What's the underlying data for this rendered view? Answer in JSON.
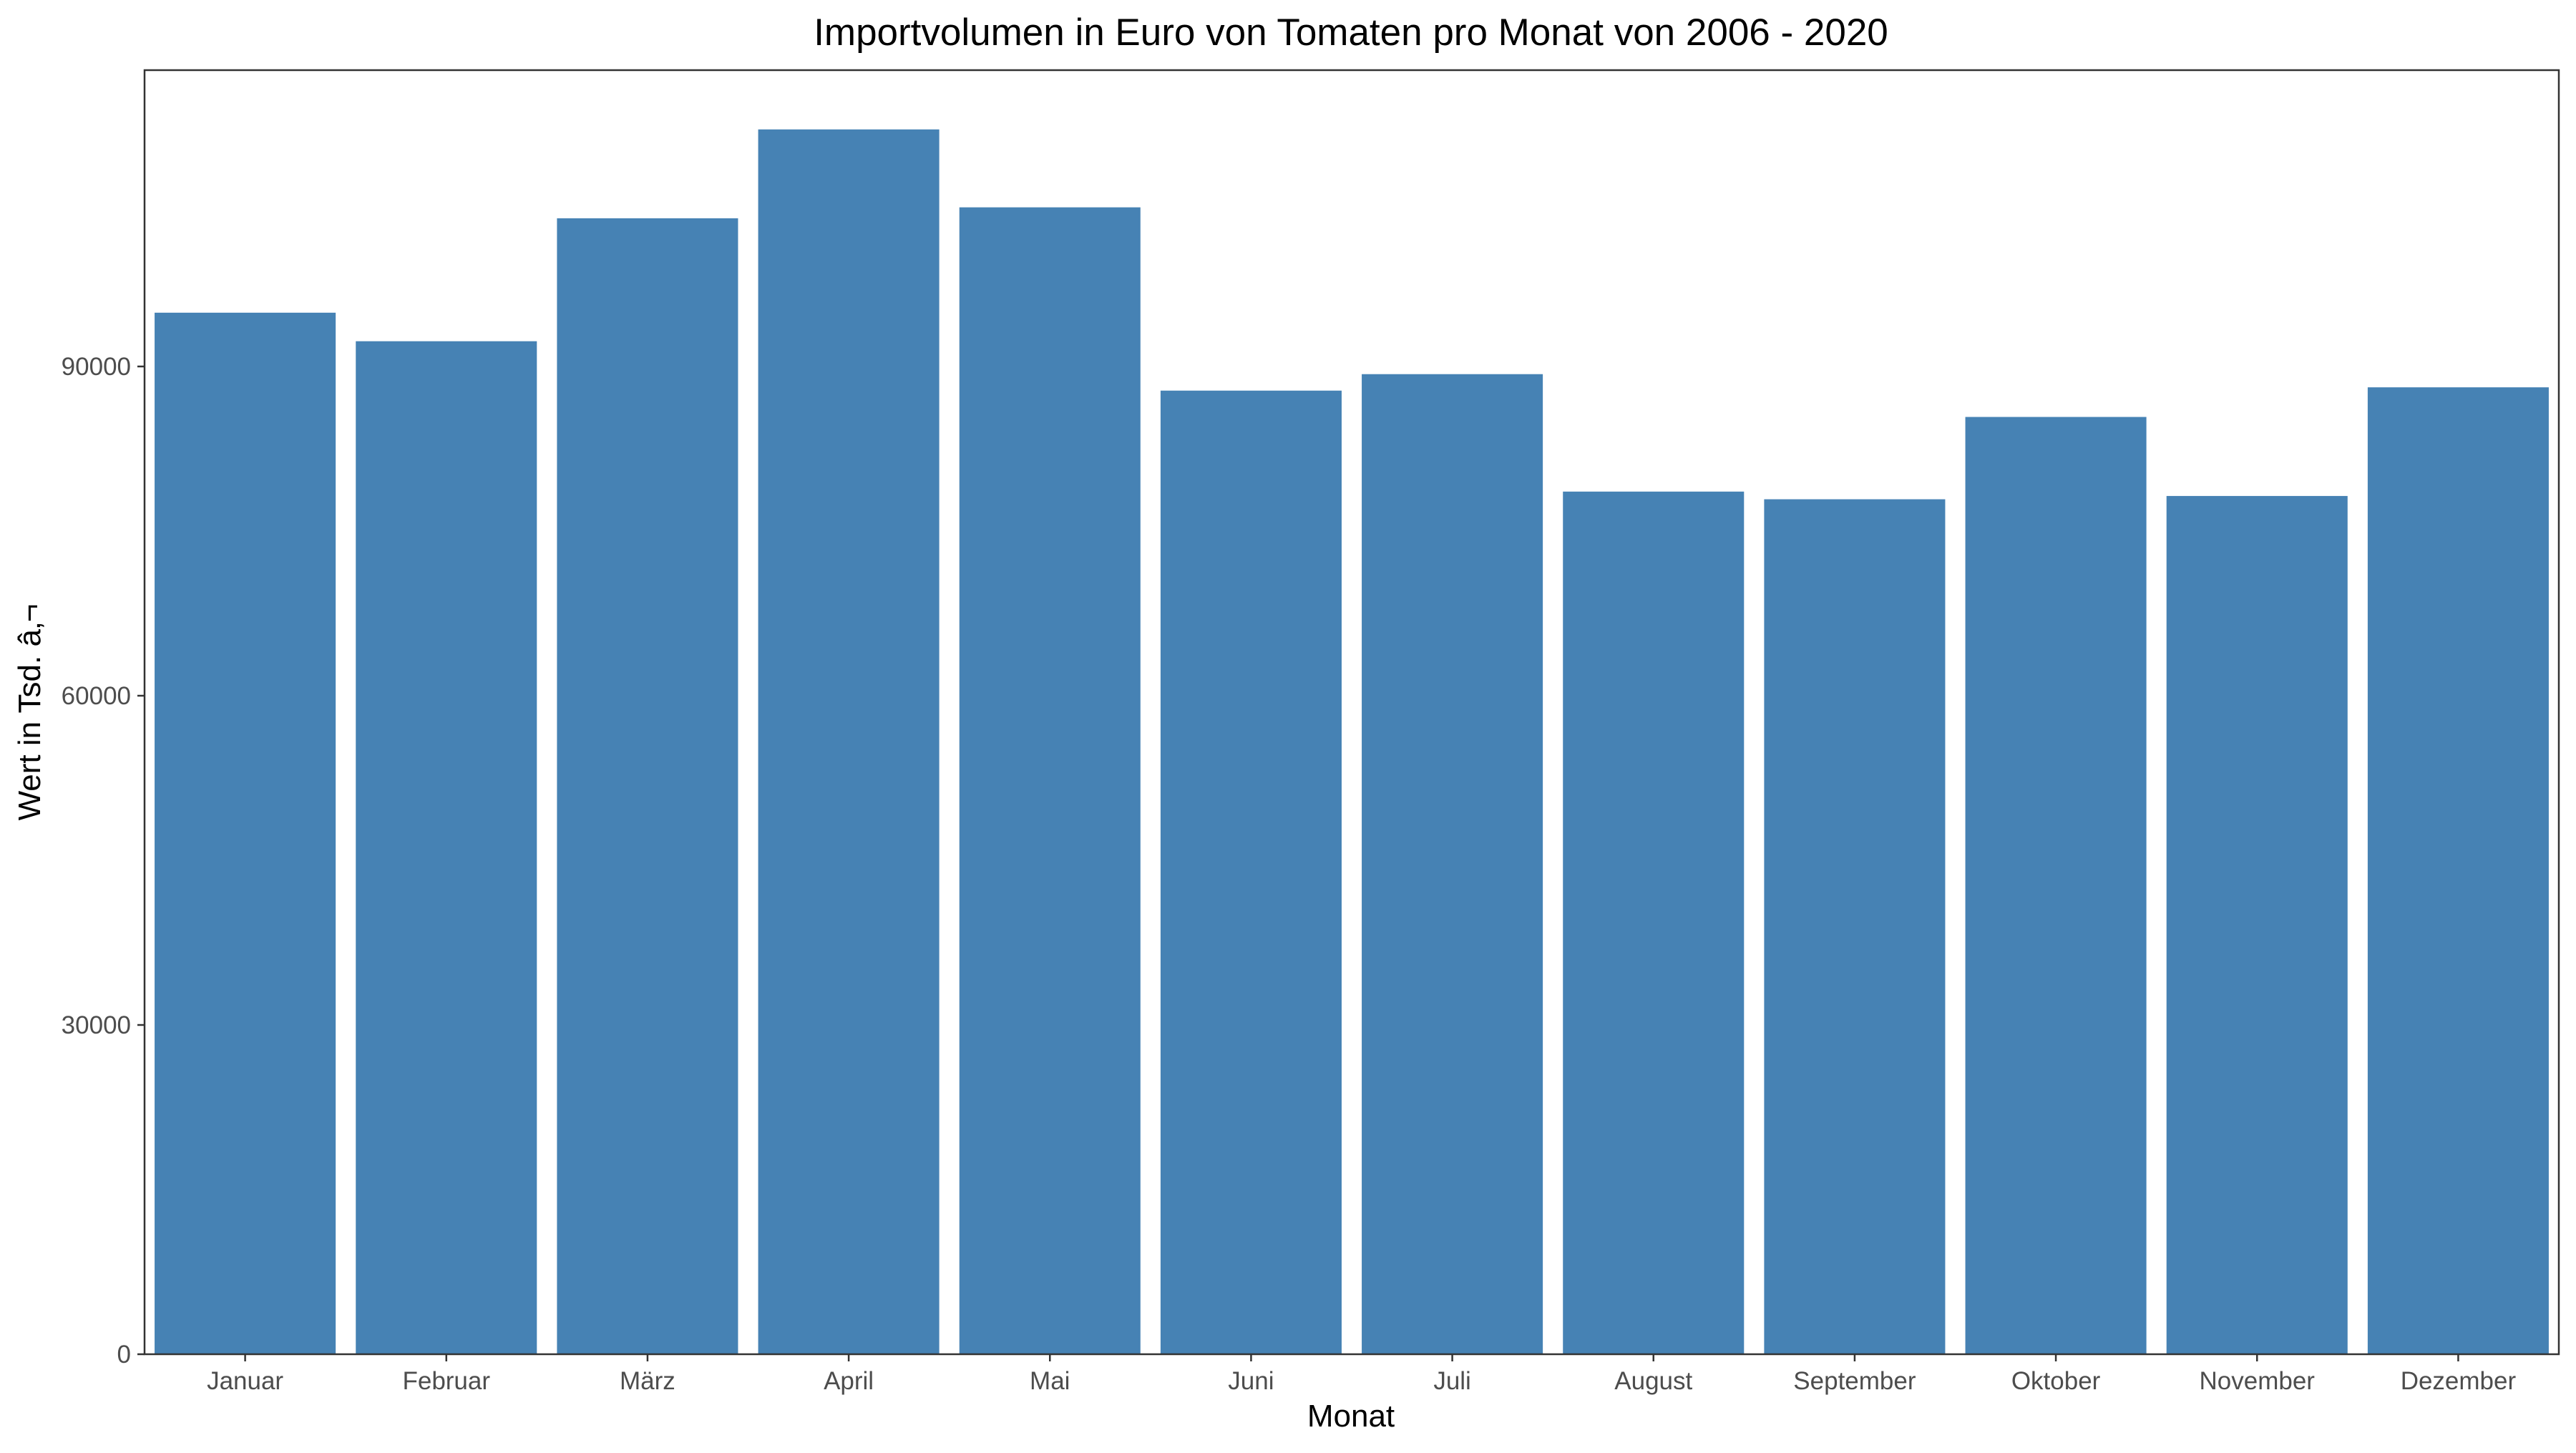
{
  "chart_data": {
    "type": "bar",
    "title": "Importvolumen in Euro von Tomaten pro Monat von 2006 - 2020",
    "xlabel": "Monat",
    "ylabel": "Wert in Tsd. â‚¬",
    "categories": [
      "Januar",
      "Februar",
      "März",
      "April",
      "Mai",
      "Juni",
      "Juli",
      "August",
      "September",
      "Oktober",
      "November",
      "Dezember"
    ],
    "values": [
      94900,
      92300,
      103500,
      111600,
      104500,
      87800,
      89300,
      78600,
      77900,
      85400,
      78200,
      88100
    ],
    "ylim": [
      0,
      117000
    ],
    "yticks": [
      0,
      30000,
      60000,
      90000
    ],
    "ytick_labels": [
      "0",
      "30000",
      "60000",
      "90000"
    ],
    "grid": false,
    "legend": "none",
    "bar_color": "#4682b4"
  }
}
